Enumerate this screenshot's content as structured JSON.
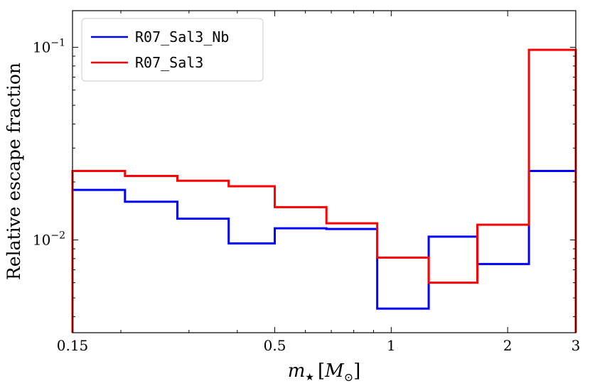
{
  "chart_data": {
    "type": "step",
    "title": "",
    "xlabel": "m",
    "xlabel_subscript": "★",
    "xlabel_unit_open": "[",
    "xlabel_unit_symbol": "M",
    "xlabel_unit_subscript": "⊙",
    "xlabel_unit_close": "]",
    "ylabel": "Relative escape fraction",
    "xscale": "log",
    "yscale": "log",
    "xlim": [
      0.15,
      3.0
    ],
    "ylim": [
      0.0033,
      0.155
    ],
    "xticks": [
      {
        "value": 0.15,
        "label": "0.15"
      },
      {
        "value": 0.5,
        "label": "0.5"
      },
      {
        "value": 1,
        "label": "1"
      },
      {
        "value": 2,
        "label": "2"
      },
      {
        "value": 3,
        "label": "3"
      }
    ],
    "yticks": [
      {
        "value": 0.01,
        "base": "10",
        "exp": "−2"
      },
      {
        "value": 0.1,
        "base": "10",
        "exp": "−1"
      }
    ],
    "bin_edges": [
      0.15,
      0.205,
      0.28,
      0.38,
      0.5,
      0.68,
      0.92,
      1.25,
      1.67,
      2.27,
      3.0
    ],
    "series": [
      {
        "name": "R07_Sal3_Nb",
        "color": "#0000ff",
        "values": [
          0.0182,
          0.0158,
          0.0129,
          0.0096,
          0.0115,
          0.0114,
          0.0044,
          0.0104,
          0.0075,
          0.0228
        ]
      },
      {
        "name": "R07_Sal3",
        "color": "#ff0000",
        "values": [
          0.0228,
          0.0215,
          0.0203,
          0.019,
          0.0148,
          0.0122,
          0.0081,
          0.006,
          0.012,
          0.097
        ]
      }
    ],
    "legend": {
      "position": "top-left"
    }
  }
}
